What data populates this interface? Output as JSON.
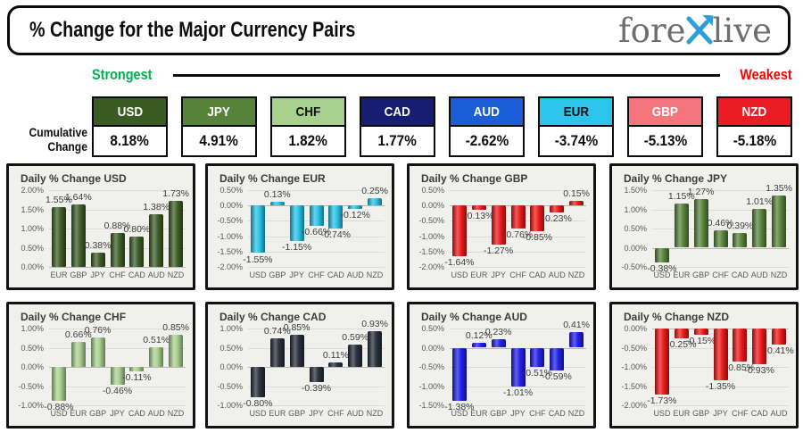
{
  "header": {
    "title": "% Change for the Major Currency Pairs",
    "logo": {
      "pre": "fore",
      "x": "X",
      "post": "live",
      "x_color": "#2d9fd8",
      "text_color": "#6e6e6e"
    }
  },
  "scale_bar": {
    "strongest": "Strongest",
    "weakest": "Weakest",
    "strongest_color": "#00b050",
    "weakest_color": "#ff0000"
  },
  "cumulative": {
    "label_line1": "Cumulative",
    "label_line2": "Change",
    "items": [
      {
        "code": "USD",
        "value": "8.18%",
        "bg": "#3a5b23",
        "fg": "#ffffff"
      },
      {
        "code": "JPY",
        "value": "4.91%",
        "bg": "#57823a",
        "fg": "#ffffff"
      },
      {
        "code": "CHF",
        "value": "1.82%",
        "bg": "#a9d18e",
        "fg": "#111111"
      },
      {
        "code": "CAD",
        "value": "1.77%",
        "bg": "#171d70",
        "fg": "#ffffff"
      },
      {
        "code": "AUD",
        "value": "-2.62%",
        "bg": "#1b5ed8",
        "fg": "#ffffff"
      },
      {
        "code": "EUR",
        "value": "-3.74%",
        "bg": "#2cc4ea",
        "fg": "#111111"
      },
      {
        "code": "GBP",
        "value": "-5.13%",
        "bg": "#f4757c",
        "fg": "#ffffff"
      },
      {
        "code": "NZD",
        "value": "-5.18%",
        "bg": "#ec1c24",
        "fg": "#ffffff"
      }
    ]
  },
  "chart_data": [
    {
      "type": "bar",
      "currency": "USD",
      "title": "Daily % Change USD",
      "categories": [
        "EUR",
        "GBP",
        "JPY",
        "CHF",
        "CAD",
        "AUD",
        "NZD"
      ],
      "values": [
        1.55,
        1.64,
        0.38,
        0.88,
        0.8,
        1.38,
        1.73
      ],
      "ylim": [
        0.0,
        2.0
      ],
      "yticks": [
        2.0,
        1.5,
        1.0,
        0.5,
        0.0
      ],
      "bar_color": "#3a5b23",
      "grid": true,
      "legend": false
    },
    {
      "type": "bar",
      "currency": "EUR",
      "title": "Daily % Change EUR",
      "categories": [
        "USD",
        "GBP",
        "JPY",
        "CHF",
        "CAD",
        "AUD",
        "NZD"
      ],
      "values": [
        -1.55,
        0.13,
        -1.15,
        -0.66,
        -0.74,
        -0.12,
        0.25
      ],
      "ylim": [
        -2.0,
        0.5
      ],
      "yticks": [
        0.5,
        0.0,
        -0.5,
        -1.0,
        -1.5,
        -2.0
      ],
      "bar_color": "#24c2e8",
      "grid": true,
      "legend": false
    },
    {
      "type": "bar",
      "currency": "GBP",
      "title": "Daily % Change GBP",
      "categories": [
        "USD",
        "EUR",
        "JPY",
        "CHF",
        "CAD",
        "AUD",
        "NZD"
      ],
      "values": [
        -1.64,
        -0.13,
        -1.27,
        -0.76,
        -0.85,
        -0.23,
        0.15
      ],
      "ylim": [
        -2.0,
        0.5
      ],
      "yticks": [
        0.5,
        0.0,
        -0.5,
        -1.0,
        -1.5,
        -2.0
      ],
      "bar_color": "#ee1414",
      "grid": true,
      "legend": false
    },
    {
      "type": "bar",
      "currency": "JPY",
      "title": "Daily % Change JPY",
      "categories": [
        "USD",
        "EUR",
        "GBP",
        "CHF",
        "CAD",
        "AUD",
        "NZD"
      ],
      "values": [
        -0.38,
        1.15,
        1.27,
        0.46,
        0.39,
        1.01,
        1.35
      ],
      "ylim": [
        -0.5,
        1.5
      ],
      "yticks": [
        1.5,
        1.0,
        0.5,
        0.0,
        -0.5
      ],
      "bar_color": "#57823a",
      "grid": true,
      "legend": false
    },
    {
      "type": "bar",
      "currency": "CHF",
      "title": "Daily % Change CHF",
      "categories": [
        "USD",
        "EUR",
        "GBP",
        "JPY",
        "CAD",
        "AUD",
        "NZD"
      ],
      "values": [
        -0.88,
        0.66,
        0.76,
        -0.46,
        -0.11,
        0.51,
        0.85
      ],
      "ylim": [
        -1.0,
        1.0
      ],
      "yticks": [
        1.0,
        0.5,
        0.0,
        -0.5,
        -1.0
      ],
      "bar_color": "#a9d18e",
      "grid": true,
      "legend": false
    },
    {
      "type": "bar",
      "currency": "CAD",
      "title": "Daily % Change CAD",
      "categories": [
        "USD",
        "EUR",
        "GBP",
        "JPY",
        "CHF",
        "AUD",
        "NZD"
      ],
      "values": [
        -0.8,
        0.74,
        0.85,
        -0.39,
        0.11,
        0.59,
        0.93
      ],
      "ylim": [
        -1.0,
        1.0
      ],
      "yticks": [
        1.0,
        0.5,
        0.0,
        -0.5,
        -1.0
      ],
      "bar_color": "#232b38",
      "grid": true,
      "legend": false
    },
    {
      "type": "bar",
      "currency": "AUD",
      "title": "Daily % Change AUD",
      "categories": [
        "USD",
        "EUR",
        "GBP",
        "JPY",
        "CHF",
        "CAD",
        "NZD"
      ],
      "values": [
        -1.38,
        0.12,
        0.23,
        -1.01,
        -0.51,
        -0.59,
        0.41
      ],
      "ylim": [
        -1.5,
        0.5
      ],
      "yticks": [
        0.5,
        0.0,
        -0.5,
        -1.0,
        -1.5
      ],
      "bar_color": "#1b1bea",
      "grid": true,
      "legend": false
    },
    {
      "type": "bar",
      "currency": "NZD",
      "title": "Daily % Change NZD",
      "categories": [
        "USD",
        "EUR",
        "GBP",
        "JPY",
        "CHF",
        "CAD",
        "AUD"
      ],
      "values": [
        -1.73,
        -0.25,
        -0.15,
        -1.35,
        -0.85,
        -0.93,
        -0.41
      ],
      "ylim": [
        -2.0,
        0.0
      ],
      "yticks": [
        0.0,
        -0.5,
        -1.0,
        -1.5,
        -2.0
      ],
      "bar_color": "#ee1414",
      "grid": true,
      "legend": false
    }
  ]
}
